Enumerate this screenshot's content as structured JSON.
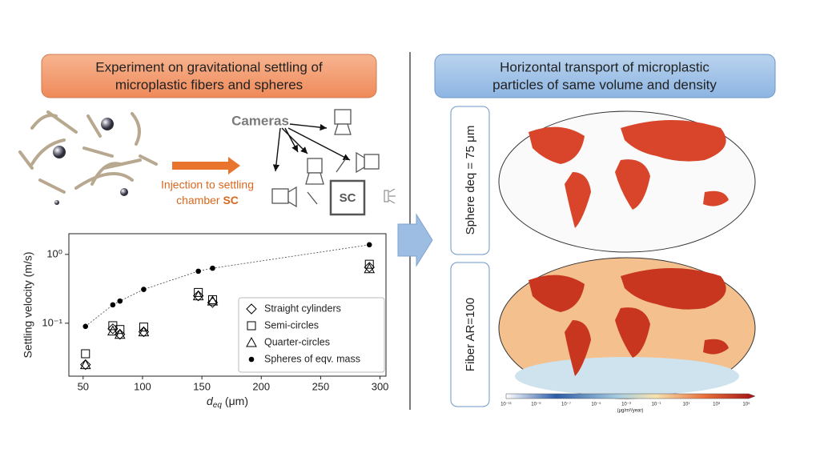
{
  "left_panel": {
    "title_lines": [
      "Experiment on gravitational settling of",
      "microplastic fibers and spheres"
    ],
    "cameras": "Cameras",
    "injection_lines": [
      "Injection to settling",
      "chamber"
    ],
    "chamber": "SC"
  },
  "chart_data": {
    "type": "scatter",
    "ylabel": "Settling velocity (m/s)",
    "xlabel": {
      "symbol": "d",
      "subscript": "eq",
      "unit": "(μm)"
    },
    "x": [
      52,
      75,
      81,
      101,
      147,
      159,
      291
    ],
    "series": [
      {
        "name": "Straight cylinders",
        "marker": "diamond",
        "color": "#000000",
        "values": [
          0.025,
          0.083,
          0.069,
          0.075,
          0.25,
          0.2,
          0.65
        ]
      },
      {
        "name": "Semi-circles",
        "marker": "square",
        "color": "#000000",
        "values": [
          0.036,
          0.092,
          0.081,
          0.088,
          0.28,
          0.22,
          0.72
        ]
      },
      {
        "name": "Quarter-circles",
        "marker": "triangle",
        "color": "#000000",
        "values": [
          0.025,
          0.077,
          0.069,
          0.075,
          0.25,
          0.21,
          0.62
        ]
      },
      {
        "name": "Spheres of eqv. mass",
        "marker": "circle",
        "color": "#000000",
        "values": [
          0.09,
          0.185,
          0.21,
          0.31,
          0.57,
          0.63,
          1.38
        ]
      }
    ],
    "fit_line": "dotted",
    "log_y": true,
    "xlim": [
      38,
      305
    ],
    "ylim": [
      0.017,
      2
    ],
    "xticks": [
      50,
      100,
      150,
      200,
      250,
      300
    ],
    "yticks": [
      {
        "value": 0.1,
        "label": "10⁻¹"
      },
      {
        "value": 1,
        "label": "10⁰"
      }
    ],
    "legend": "lower right"
  },
  "right_panel": {
    "title_lines": [
      "Horizontal transport of microplastic",
      "particles of same volume and density"
    ],
    "maps": [
      {
        "label": "Sphere deq = 75 μm"
      },
      {
        "label": "Fiber AR=100"
      }
    ],
    "colorbar": {
      "ticks": [
        "10⁻¹¹",
        "10⁻⁹",
        "10⁻⁷",
        "10⁻⁵",
        "10⁻³",
        "10⁻¹",
        "10¹",
        "10³",
        "10⁵"
      ],
      "unit": "(μg/m²/year)"
    }
  }
}
